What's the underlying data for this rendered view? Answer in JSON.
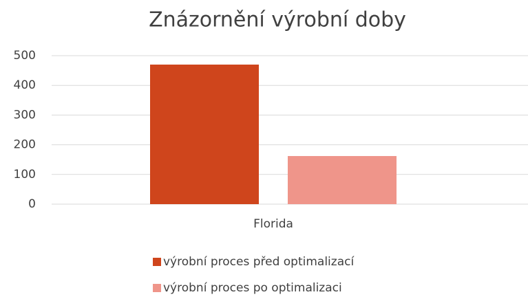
{
  "chart_data": {
    "type": "bar",
    "title": "Znázornění výrobní doby",
    "categories": [
      "Florida"
    ],
    "series": [
      {
        "name": "výrobní proces před optimalizací",
        "color": "#cf451c",
        "values": [
          470
        ]
      },
      {
        "name": "výrobní proces po optimalizaci",
        "color": "#ef958a",
        "values": [
          162
        ]
      }
    ],
    "ylim": [
      0,
      500
    ],
    "yticks": [
      0,
      100,
      200,
      300,
      400,
      500
    ],
    "grid": true,
    "legend": "bottom"
  }
}
